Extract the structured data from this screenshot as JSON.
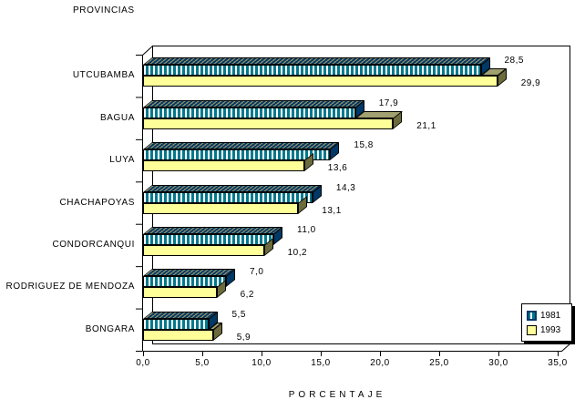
{
  "colors": {
    "background": "#FFFFFF",
    "outline": "#000000",
    "series_1981_front": "#00788C",
    "series_1981_stripe": "#FFFFFF",
    "series_1981_top_bg": "#003866",
    "series_1981_top_stripe": "#8F8F66",
    "series_1981_side": "#003866",
    "series_1993_front": "#FFFF99",
    "series_1993_top": "#A0A070",
    "series_1993_side": "#6B6B3D"
  },
  "chart_data": {
    "type": "bar",
    "orientation": "horizontal",
    "style": "3d",
    "title": "PROVINCIAS",
    "xlabel": "PORCENTAJE",
    "categories": [
      "UTCUBAMBA",
      "BAGUA",
      "LUYA",
      "CHACHAPOYAS",
      "CONDORCANQUI",
      "RODRIGUEZ DE MENDOZA",
      "BONGARA"
    ],
    "series": [
      {
        "name": "1981",
        "values": [
          28.5,
          17.9,
          15.8,
          14.3,
          11.0,
          7.0,
          5.5
        ],
        "labels": [
          "28,5",
          "17,9",
          "15,8",
          "14,3",
          "11,0",
          "7,0",
          "5,5"
        ]
      },
      {
        "name": "1993",
        "values": [
          29.9,
          21.1,
          13.6,
          13.1,
          10.2,
          6.2,
          5.9
        ],
        "labels": [
          "29,9",
          "21,1",
          "13,6",
          "13,1",
          "10,2",
          "6,2",
          "5,9"
        ]
      }
    ],
    "xlim": [
      0,
      35
    ],
    "xticks": [
      0,
      5,
      10,
      15,
      20,
      25,
      30,
      35
    ],
    "xtick_labels": [
      "0,0",
      "5,0",
      "10,0",
      "15,0",
      "20,0",
      "25,0",
      "30,0",
      "35,0"
    ],
    "grid": false,
    "legend_position": "bottom-right"
  }
}
